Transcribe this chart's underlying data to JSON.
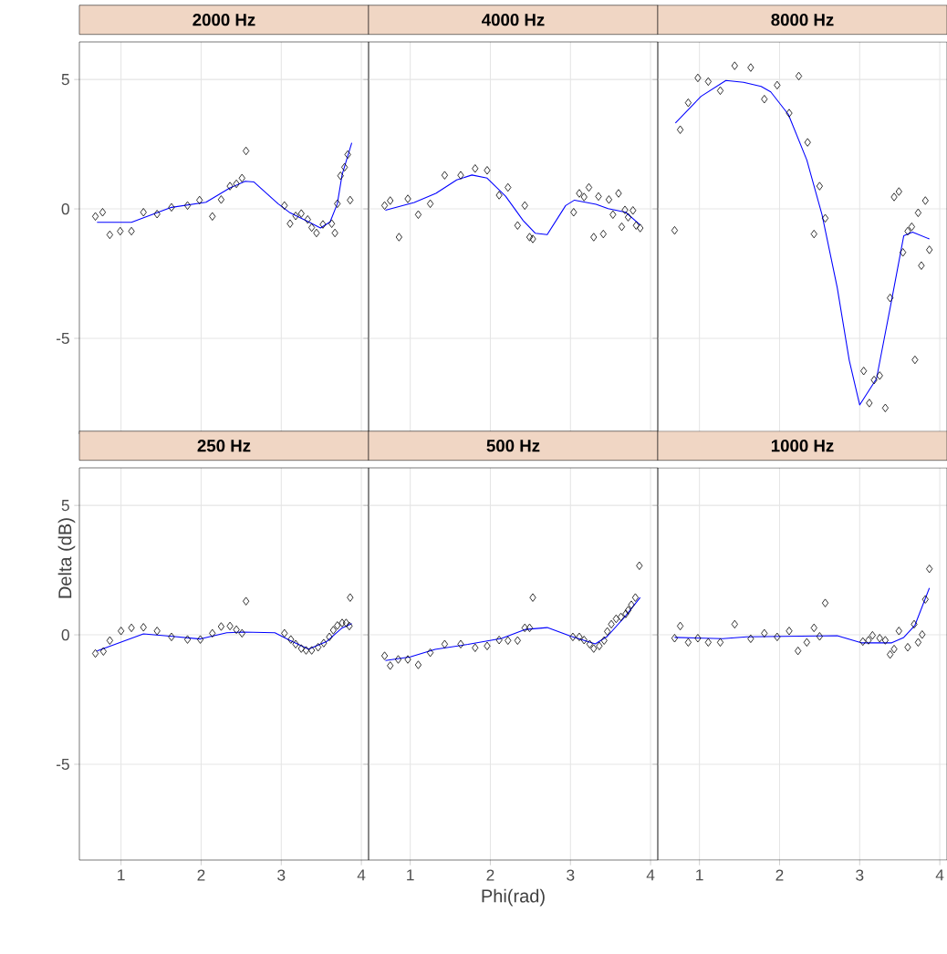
{
  "chart_data": [
    {
      "type": "scatter",
      "title": "2000 Hz",
      "xlim": [
        0.48,
        4.09
      ],
      "ylim": [
        -8.7,
        6.45
      ],
      "xticks": [
        1,
        2,
        3,
        4
      ],
      "yticks": [
        -5,
        0,
        5
      ],
      "grid": true,
      "tick_labels": "y",
      "series": [
        {
          "marker": "diamond",
          "color": "#000000",
          "x": [
            0.68,
            0.77,
            0.86,
            0.99,
            1.13,
            1.28,
            1.45,
            1.63,
            1.83,
            1.98,
            2.14,
            2.25,
            2.36,
            2.44,
            2.51,
            2.56,
            3.04,
            3.11,
            3.18,
            3.25,
            3.33,
            3.38,
            3.44,
            3.52,
            3.63,
            3.67,
            3.7,
            3.74,
            3.79,
            3.83,
            3.86
          ],
          "values": [
            -0.29,
            -0.13,
            -1.0,
            -0.86,
            -0.86,
            -0.13,
            -0.2,
            0.06,
            0.13,
            0.34,
            -0.29,
            0.36,
            0.88,
            0.97,
            1.19,
            2.24,
            0.13,
            -0.57,
            -0.27,
            -0.18,
            -0.41,
            -0.72,
            -0.93,
            -0.6,
            -0.57,
            -0.93,
            0.2,
            1.28,
            1.61,
            2.1,
            0.34
          ]
        },
        {
          "type": "line",
          "color": "#0000ff",
          "x": [
            0.7,
            1.13,
            1.63,
            2.06,
            2.36,
            2.55,
            2.66,
            2.96,
            3.11,
            3.34,
            3.49,
            3.61,
            3.7,
            3.76,
            3.88
          ],
          "values": [
            -0.52,
            -0.52,
            0.06,
            0.26,
            0.81,
            1.07,
            1.04,
            0.2,
            -0.15,
            -0.5,
            -0.74,
            -0.5,
            0.2,
            1.33,
            2.55
          ]
        }
      ]
    },
    {
      "type": "scatter",
      "title": "4000 Hz",
      "xlim": [
        0.48,
        4.09
      ],
      "ylim": [
        -8.7,
        6.45
      ],
      "xticks": [
        1,
        2,
        3,
        4
      ],
      "yticks": [
        -5,
        0,
        5
      ],
      "grid": true,
      "tick_labels": false,
      "series": [
        {
          "marker": "diamond",
          "color": "#000000",
          "x": [
            0.68,
            0.75,
            0.86,
            0.97,
            1.1,
            1.25,
            1.43,
            1.63,
            1.81,
            1.96,
            2.11,
            2.22,
            2.34,
            2.43,
            2.49,
            2.53,
            3.04,
            3.11,
            3.17,
            3.23,
            3.29,
            3.35,
            3.41,
            3.48,
            3.53,
            3.6,
            3.64,
            3.68,
            3.72,
            3.78,
            3.82,
            3.87
          ],
          "values": [
            0.13,
            0.32,
            -1.09,
            0.39,
            -0.22,
            0.2,
            1.3,
            1.3,
            1.56,
            1.49,
            0.53,
            0.83,
            -0.64,
            0.13,
            -1.09,
            -1.16,
            -0.13,
            0.6,
            0.46,
            0.83,
            -1.09,
            0.48,
            -0.97,
            0.36,
            -0.22,
            0.6,
            -0.69,
            -0.04,
            -0.32,
            -0.06,
            -0.64,
            -0.74
          ]
        },
        {
          "type": "line",
          "color": "#0000ff",
          "x": [
            0.69,
            1.05,
            1.32,
            1.58,
            1.77,
            1.96,
            2.19,
            2.41,
            2.56,
            2.71,
            2.94,
            3.05,
            3.32,
            3.47,
            3.69,
            3.87
          ],
          "values": [
            -0.05,
            0.25,
            0.6,
            1.12,
            1.31,
            1.19,
            0.49,
            -0.45,
            -0.94,
            -0.99,
            0.13,
            0.34,
            0.18,
            0.01,
            -0.13,
            -0.62
          ]
        }
      ]
    },
    {
      "type": "scatter",
      "title": "8000 Hz",
      "xlim": [
        0.48,
        4.09
      ],
      "ylim": [
        -8.7,
        6.45
      ],
      "xticks": [
        1,
        2,
        3,
        4
      ],
      "yticks": [
        -5,
        0,
        5
      ],
      "grid": true,
      "tick_labels": false,
      "series": [
        {
          "marker": "diamond",
          "color": "#000000",
          "x": [
            0.69,
            0.76,
            0.86,
            0.98,
            1.11,
            1.26,
            1.44,
            1.64,
            1.81,
            1.97,
            2.12,
            2.24,
            2.35,
            2.43,
            2.5,
            2.57,
            3.05,
            3.12,
            3.18,
            3.25,
            3.32,
            3.38,
            3.43,
            3.49,
            3.54,
            3.6,
            3.65,
            3.69,
            3.73,
            3.77,
            3.82,
            3.87
          ],
          "values": [
            -0.83,
            3.06,
            4.1,
            5.06,
            4.92,
            4.57,
            5.53,
            5.46,
            4.24,
            4.78,
            3.7,
            5.13,
            2.57,
            -0.97,
            0.88,
            -0.36,
            -6.26,
            -7.5,
            -6.61,
            -6.44,
            -7.69,
            -3.44,
            0.46,
            0.67,
            -1.68,
            -0.86,
            -0.69,
            -5.83,
            -0.15,
            -2.19,
            0.32,
            -1.58
          ]
        },
        {
          "type": "line",
          "color": "#0000ff",
          "x": [
            0.7,
            1.02,
            1.33,
            1.55,
            1.77,
            1.89,
            2.11,
            2.34,
            2.53,
            2.72,
            2.87,
            3.0,
            3.21,
            3.4,
            3.55,
            3.66,
            3.87
          ],
          "values": [
            3.32,
            4.35,
            4.96,
            4.89,
            4.73,
            4.52,
            3.65,
            1.89,
            -0.22,
            -3.04,
            -5.85,
            -7.57,
            -6.56,
            -3.51,
            -1.04,
            -0.9,
            -1.16
          ]
        }
      ]
    },
    {
      "type": "scatter",
      "title": "250 Hz",
      "ylabel": "Delta (dB)",
      "xlim": [
        0.48,
        4.09
      ],
      "ylim": [
        -8.7,
        6.45
      ],
      "xticks": [
        1,
        2,
        3,
        4
      ],
      "yticks": [
        -5,
        0,
        5
      ],
      "grid": true,
      "series": [
        {
          "marker": "diamond",
          "color": "#000000",
          "x": [
            0.68,
            0.78,
            0.86,
            1.0,
            1.13,
            1.28,
            1.45,
            1.63,
            1.83,
            1.99,
            2.14,
            2.25,
            2.36,
            2.44,
            2.51,
            2.56,
            3.04,
            3.12,
            3.18,
            3.25,
            3.31,
            3.38,
            3.46,
            3.53,
            3.6,
            3.65,
            3.7,
            3.76,
            3.81,
            3.85,
            3.86
          ],
          "values": [
            -0.72,
            -0.64,
            -0.22,
            0.15,
            0.27,
            0.29,
            0.15,
            -0.08,
            -0.18,
            -0.18,
            0.06,
            0.32,
            0.34,
            0.2,
            0.06,
            1.3,
            0.06,
            -0.18,
            -0.36,
            -0.53,
            -0.6,
            -0.6,
            -0.48,
            -0.32,
            -0.08,
            0.18,
            0.36,
            0.46,
            0.46,
            0.34,
            1.44
          ]
        },
        {
          "type": "line",
          "color": "#0000ff",
          "x": [
            0.7,
            1.28,
            1.61,
            1.99,
            2.32,
            2.51,
            2.92,
            3.11,
            3.34,
            3.57,
            3.76,
            3.88
          ],
          "values": [
            -0.62,
            0.04,
            -0.05,
            -0.16,
            0.08,
            0.11,
            0.08,
            -0.22,
            -0.55,
            -0.25,
            0.27,
            0.43
          ]
        }
      ]
    },
    {
      "type": "scatter",
      "title": "500 Hz",
      "xlabel": "Phi(rad)",
      "xlim": [
        0.48,
        4.09
      ],
      "ylim": [
        -8.7,
        6.45
      ],
      "xticks": [
        1,
        2,
        3,
        4
      ],
      "yticks": [
        -5,
        0,
        5
      ],
      "grid": true,
      "tick_labels": "x",
      "series": [
        {
          "marker": "diamond",
          "color": "#000000",
          "x": [
            0.68,
            0.75,
            0.85,
            0.97,
            1.1,
            1.25,
            1.43,
            1.63,
            1.81,
            1.96,
            2.11,
            2.22,
            2.34,
            2.43,
            2.49,
            2.53,
            3.03,
            3.11,
            3.17,
            3.24,
            3.29,
            3.36,
            3.42,
            3.46,
            3.51,
            3.57,
            3.63,
            3.69,
            3.72,
            3.76,
            3.81,
            3.86
          ],
          "values": [
            -0.81,
            -1.19,
            -0.95,
            -0.95,
            -1.16,
            -0.69,
            -0.36,
            -0.36,
            -0.5,
            -0.43,
            -0.2,
            -0.22,
            -0.22,
            0.27,
            0.27,
            1.44,
            -0.08,
            -0.08,
            -0.2,
            -0.36,
            -0.53,
            -0.43,
            -0.22,
            0.13,
            0.41,
            0.62,
            0.69,
            0.81,
            0.95,
            1.16,
            1.44,
            2.67
          ]
        },
        {
          "type": "line",
          "color": "#0000ff",
          "x": [
            0.69,
            1.0,
            1.31,
            1.72,
            2.14,
            2.44,
            2.71,
            3.01,
            3.31,
            3.46,
            3.69,
            3.87
          ],
          "values": [
            -0.99,
            -0.85,
            -0.56,
            -0.37,
            -0.14,
            0.21,
            0.28,
            -0.06,
            -0.35,
            -0.06,
            0.74,
            1.44
          ]
        }
      ]
    },
    {
      "type": "scatter",
      "title": "1000 Hz",
      "xlim": [
        0.48,
        4.09
      ],
      "ylim": [
        -8.7,
        6.45
      ],
      "xticks": [
        1,
        2,
        3,
        4
      ],
      "yticks": [
        -5,
        0,
        5
      ],
      "grid": true,
      "tick_labels": "x",
      "series": [
        {
          "marker": "diamond",
          "color": "#000000",
          "x": [
            0.69,
            0.76,
            0.86,
            0.98,
            1.11,
            1.26,
            1.44,
            1.64,
            1.81,
            1.97,
            2.12,
            2.23,
            2.34,
            2.43,
            2.5,
            2.57,
            3.04,
            3.11,
            3.16,
            3.25,
            3.32,
            3.38,
            3.43,
            3.49,
            3.6,
            3.68,
            3.73,
            3.78,
            3.82,
            3.87
          ],
          "values": [
            -0.13,
            0.34,
            -0.29,
            -0.13,
            -0.29,
            -0.29,
            0.41,
            -0.15,
            0.06,
            -0.08,
            0.15,
            -0.62,
            -0.29,
            0.27,
            -0.06,
            1.23,
            -0.26,
            -0.21,
            -0.02,
            -0.13,
            -0.21,
            -0.76,
            -0.55,
            0.15,
            -0.48,
            0.41,
            -0.29,
            0.01,
            1.37,
            2.55
          ]
        },
        {
          "type": "line",
          "color": "#0000ff",
          "x": [
            0.69,
            1.29,
            1.59,
            2.72,
            3.02,
            3.4,
            3.55,
            3.69,
            3.87
          ],
          "values": [
            -0.1,
            -0.15,
            -0.08,
            -0.03,
            -0.31,
            -0.31,
            -0.1,
            0.37,
            1.81
          ]
        }
      ]
    }
  ]
}
